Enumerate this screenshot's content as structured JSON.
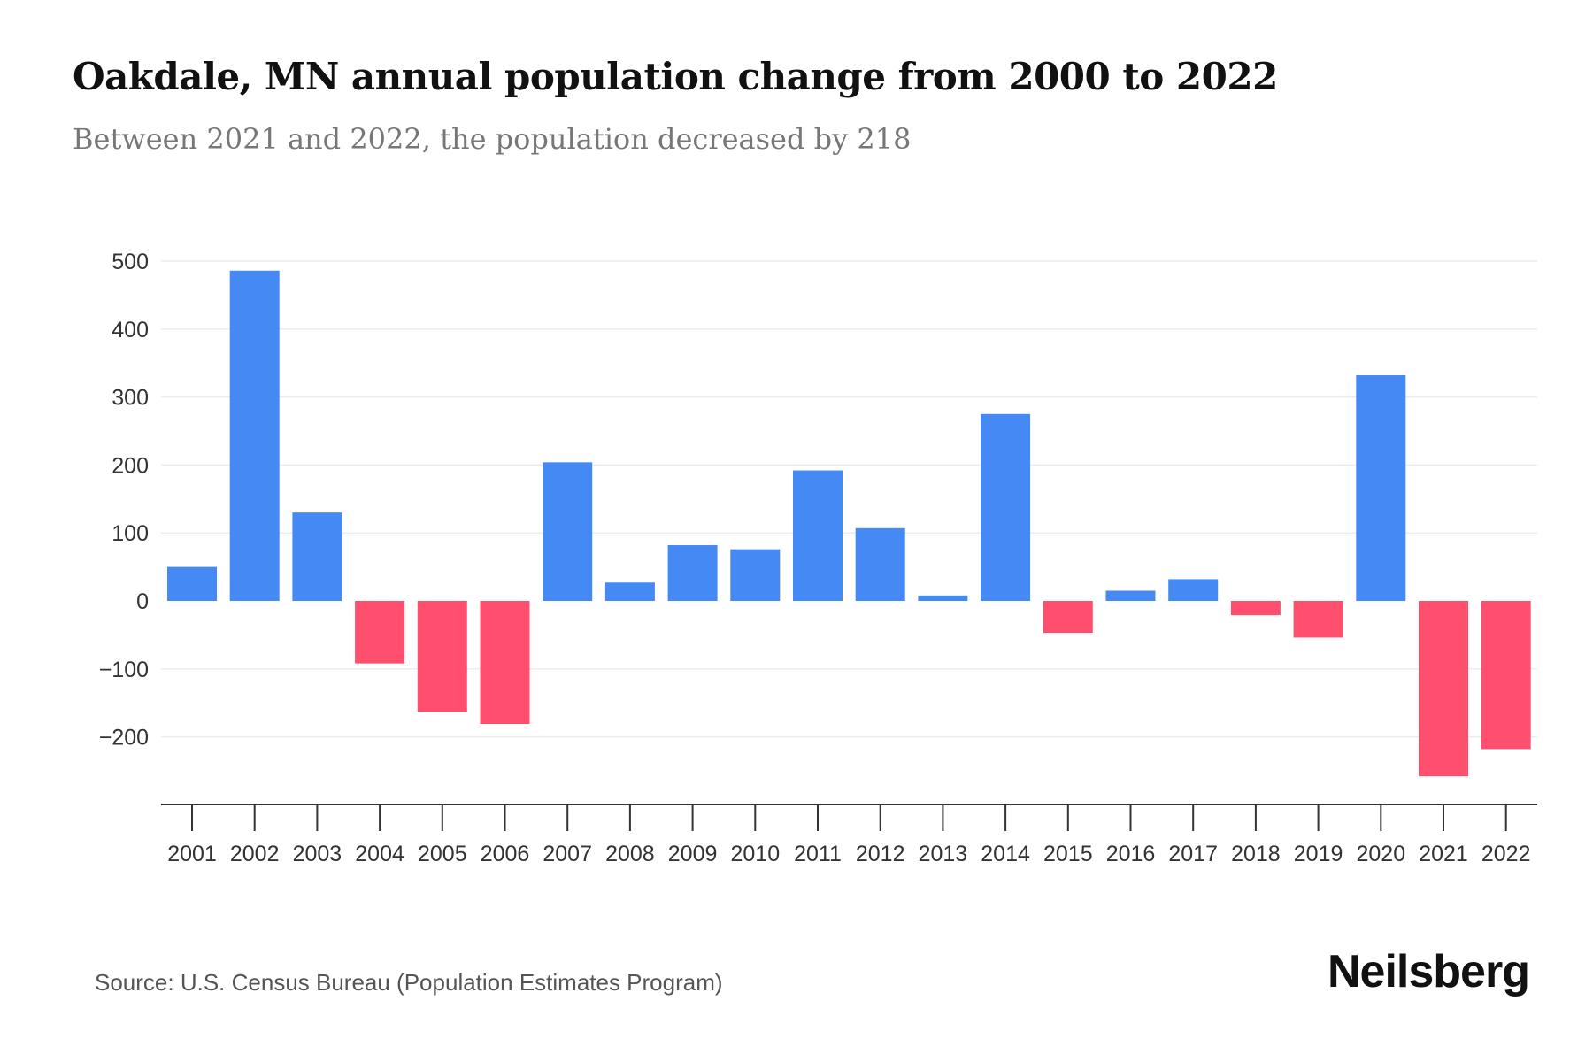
{
  "chart_data": {
    "type": "bar",
    "title": "Oakdale, MN annual population change from 2000 to 2022",
    "subtitle": "Between 2021 and 2022, the population decreased by 218",
    "categories": [
      "2001",
      "2002",
      "2003",
      "2004",
      "2005",
      "2006",
      "2007",
      "2008",
      "2009",
      "2010",
      "2011",
      "2012",
      "2013",
      "2014",
      "2015",
      "2016",
      "2017",
      "2018",
      "2019",
      "2020",
      "2021",
      "2022"
    ],
    "values": [
      50,
      486,
      130,
      -92,
      -163,
      -181,
      204,
      27,
      82,
      76,
      192,
      107,
      8,
      275,
      -47,
      15,
      32,
      -21,
      -54,
      332,
      -258,
      -218
    ],
    "yticks": [
      500,
      400,
      300,
      200,
      100,
      0,
      -100,
      -200
    ],
    "ytick_labels": [
      "500",
      "400",
      "300",
      "200",
      "100",
      "0",
      "−100",
      "−200"
    ],
    "ylim": [
      -300,
      500
    ],
    "xlabel": "",
    "ylabel": "",
    "grid": true,
    "colors": {
      "positive": "#4589f5",
      "negative": "#fe506e"
    }
  },
  "source": "Source: U.S. Census Bureau (Population Estimates Program)",
  "logo": "Neilsberg"
}
